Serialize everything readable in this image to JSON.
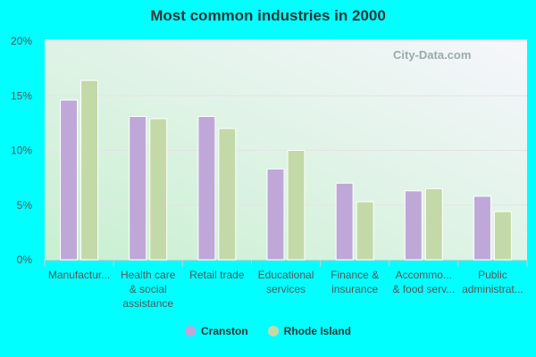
{
  "chart_data": {
    "type": "bar",
    "title": "Most common industries in 2000",
    "categories": [
      [
        "Manufactur..."
      ],
      [
        "Health care",
        "& social",
        "assistance"
      ],
      [
        "Retail trade"
      ],
      [
        "Educational",
        "services"
      ],
      [
        "Finance &",
        "insurance"
      ],
      [
        "Accommo...",
        "& food serv..."
      ],
      [
        "Public",
        "administrat..."
      ]
    ],
    "series": [
      {
        "name": "Cranston",
        "color": "#bfa8d8",
        "values": [
          14.6,
          13.1,
          13.1,
          8.3,
          7.0,
          6.3,
          5.8
        ]
      },
      {
        "name": "Rhode Island",
        "color": "#c4d9a8",
        "values": [
          16.4,
          12.9,
          12.0,
          10.0,
          5.3,
          6.5,
          4.4
        ]
      }
    ],
    "ylim": [
      0,
      20
    ],
    "yticks": [
      "0%",
      "5%",
      "10%",
      "15%",
      "20%"
    ],
    "grid": true,
    "legend": "bottom"
  },
  "watermark": "City-Data.com"
}
